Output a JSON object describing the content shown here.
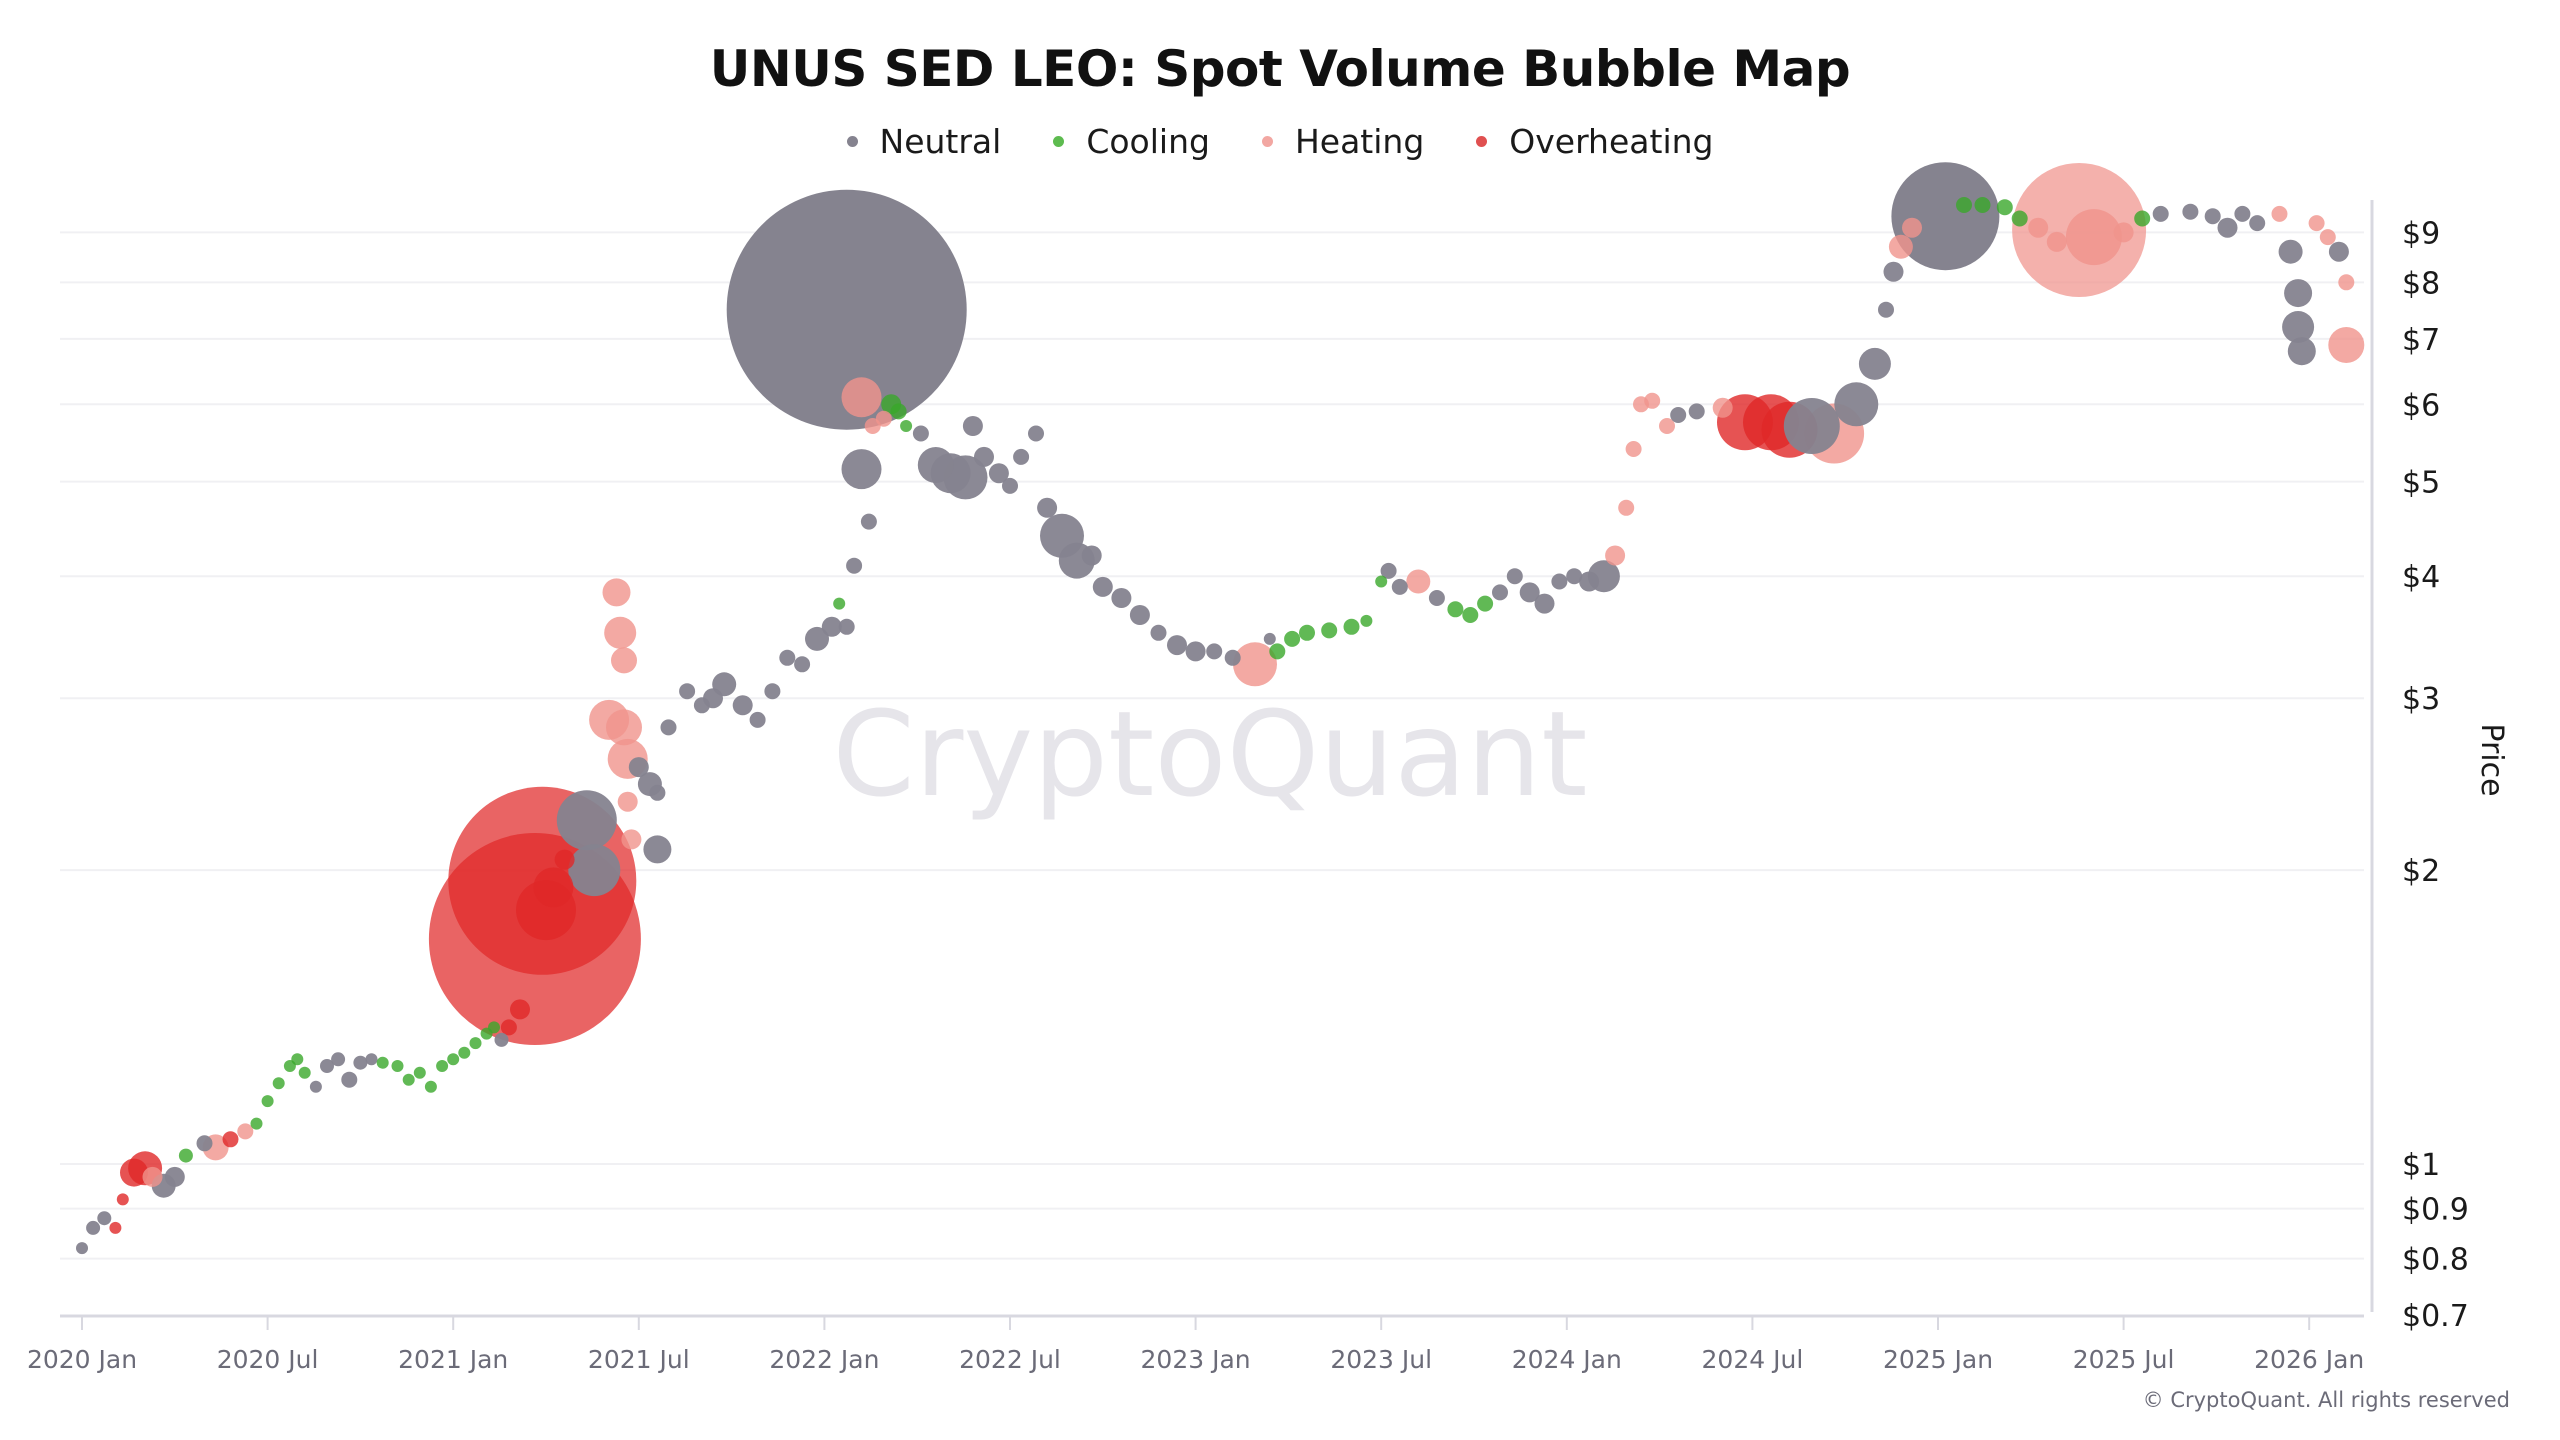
{
  "title": "UNUS SED LEO: Spot Volume Bubble Map",
  "legend": [
    {
      "label": "Neutral",
      "color": "#85838f"
    },
    {
      "label": "Cooling",
      "color": "#5dbb4f"
    },
    {
      "label": "Heating",
      "color": "#f2a7a2"
    },
    {
      "label": "Overheating",
      "color": "#e05050"
    }
  ],
  "watermark": "CryptoQuant",
  "copyright": "© CryptoQuant. All rights reserved",
  "colors": {
    "Neutral": "#85838f",
    "Cooling": "#3aa82a",
    "Heating": "#f0938c",
    "Overheating": "#e02828",
    "grid": "#f0f0f3",
    "axis": "#d8d8e0"
  },
  "chart_data": {
    "type": "scatter",
    "subtype": "bubble",
    "title": "UNUS SED LEO: Spot Volume Bubble Map",
    "xlabel": "",
    "ylabel": "Price",
    "yscale": "log",
    "ylim": [
      0.7,
      10
    ],
    "xlim": [
      "2019-12",
      "2026-03"
    ],
    "grid": true,
    "legend_position": "top",
    "x_ticks": [
      "2020 Jan",
      "2020 Jul",
      "2021 Jan",
      "2021 Jul",
      "2022 Jan",
      "2022 Jul",
      "2023 Jan",
      "2023 Jul",
      "2024 Jan",
      "2024 Jul",
      "2025 Jan",
      "2025 Jul",
      "2026 Jan"
    ],
    "y_ticks": [
      {
        "value": 9,
        "label": "$9"
      },
      {
        "value": 8,
        "label": "$8"
      },
      {
        "value": 7,
        "label": "$7"
      },
      {
        "value": 6,
        "label": "$6"
      },
      {
        "value": 5,
        "label": "$5"
      },
      {
        "value": 4,
        "label": "$4"
      },
      {
        "value": 3,
        "label": "$3"
      },
      {
        "value": 2,
        "label": "$2"
      },
      {
        "value": 1,
        "label": "$1"
      },
      {
        "value": 0.9,
        "label": "$0.9"
      },
      {
        "value": 0.8,
        "label": "$0.8"
      },
      {
        "value": 0.7,
        "label": "$0.7"
      }
    ],
    "series_names": [
      "Neutral",
      "Cooling",
      "Heating",
      "Overheating"
    ],
    "points_format": [
      "year_fraction",
      "price_usd",
      "state",
      "bubble_radius_px"
    ],
    "points": [
      [
        2020.0,
        0.82,
        "Neutral",
        6
      ],
      [
        2020.03,
        0.86,
        "Neutral",
        7
      ],
      [
        2020.06,
        0.88,
        "Neutral",
        7
      ],
      [
        2020.09,
        0.86,
        "Overheating",
        6
      ],
      [
        2020.11,
        0.92,
        "Overheating",
        6
      ],
      [
        2020.14,
        0.98,
        "Overheating",
        14
      ],
      [
        2020.17,
        0.99,
        "Overheating",
        17
      ],
      [
        2020.19,
        0.97,
        "Heating",
        10
      ],
      [
        2020.22,
        0.95,
        "Neutral",
        12
      ],
      [
        2020.25,
        0.97,
        "Neutral",
        10
      ],
      [
        2020.28,
        1.02,
        "Cooling",
        7
      ],
      [
        2020.33,
        1.05,
        "Neutral",
        8
      ],
      [
        2020.36,
        1.04,
        "Heating",
        13
      ],
      [
        2020.4,
        1.06,
        "Overheating",
        8
      ],
      [
        2020.44,
        1.08,
        "Heating",
        8
      ],
      [
        2020.47,
        1.1,
        "Cooling",
        6
      ],
      [
        2020.5,
        1.16,
        "Cooling",
        6
      ],
      [
        2020.53,
        1.21,
        "Cooling",
        6
      ],
      [
        2020.56,
        1.26,
        "Cooling",
        6
      ],
      [
        2020.58,
        1.28,
        "Cooling",
        6
      ],
      [
        2020.6,
        1.24,
        "Cooling",
        6
      ],
      [
        2020.63,
        1.2,
        "Neutral",
        6
      ],
      [
        2020.66,
        1.26,
        "Neutral",
        7
      ],
      [
        2020.69,
        1.28,
        "Neutral",
        7
      ],
      [
        2020.72,
        1.22,
        "Neutral",
        8
      ],
      [
        2020.75,
        1.27,
        "Neutral",
        7
      ],
      [
        2020.78,
        1.28,
        "Neutral",
        6
      ],
      [
        2020.81,
        1.27,
        "Cooling",
        6
      ],
      [
        2020.85,
        1.26,
        "Cooling",
        6
      ],
      [
        2020.88,
        1.22,
        "Cooling",
        6
      ],
      [
        2020.91,
        1.24,
        "Cooling",
        6
      ],
      [
        2020.94,
        1.2,
        "Cooling",
        6
      ],
      [
        2020.97,
        1.26,
        "Cooling",
        6
      ],
      [
        2021.0,
        1.28,
        "Cooling",
        6
      ],
      [
        2021.03,
        1.3,
        "Cooling",
        6
      ],
      [
        2021.06,
        1.33,
        "Cooling",
        6
      ],
      [
        2021.09,
        1.36,
        "Cooling",
        6
      ],
      [
        2021.11,
        1.38,
        "Cooling",
        6
      ],
      [
        2021.13,
        1.34,
        "Neutral",
        7
      ],
      [
        2021.15,
        1.38,
        "Overheating",
        8
      ],
      [
        2021.18,
        1.44,
        "Overheating",
        10
      ],
      [
        2021.22,
        1.7,
        "Overheating",
        106
      ],
      [
        2021.24,
        1.95,
        "Overheating",
        94
      ],
      [
        2021.25,
        1.82,
        "Overheating",
        30
      ],
      [
        2021.27,
        1.92,
        "Overheating",
        20
      ],
      [
        2021.3,
        2.05,
        "Overheating",
        10
      ],
      [
        2021.36,
        2.25,
        "Neutral",
        30
      ],
      [
        2021.38,
        2.0,
        "Neutral",
        26
      ],
      [
        2021.42,
        2.85,
        "Heating",
        20
      ],
      [
        2021.44,
        3.85,
        "Heating",
        14
      ],
      [
        2021.45,
        3.5,
        "Heating",
        16
      ],
      [
        2021.46,
        3.28,
        "Heating",
        13
      ],
      [
        2021.46,
        2.8,
        "Heating",
        18
      ],
      [
        2021.47,
        2.6,
        "Heating",
        20
      ],
      [
        2021.47,
        2.35,
        "Heating",
        10
      ],
      [
        2021.48,
        2.15,
        "Heating",
        10
      ],
      [
        2021.5,
        2.55,
        "Neutral",
        10
      ],
      [
        2021.53,
        2.45,
        "Neutral",
        12
      ],
      [
        2021.55,
        2.1,
        "Neutral",
        14
      ],
      [
        2021.55,
        2.4,
        "Neutral",
        8
      ],
      [
        2021.58,
        2.8,
        "Neutral",
        8
      ],
      [
        2021.63,
        3.05,
        "Neutral",
        8
      ],
      [
        2021.67,
        2.95,
        "Neutral",
        8
      ],
      [
        2021.7,
        3.0,
        "Neutral",
        10
      ],
      [
        2021.73,
        3.1,
        "Neutral",
        12
      ],
      [
        2021.78,
        2.95,
        "Neutral",
        10
      ],
      [
        2021.82,
        2.85,
        "Neutral",
        8
      ],
      [
        2021.86,
        3.05,
        "Neutral",
        8
      ],
      [
        2021.9,
        3.3,
        "Neutral",
        8
      ],
      [
        2021.94,
        3.25,
        "Neutral",
        8
      ],
      [
        2021.98,
        3.45,
        "Neutral",
        12
      ],
      [
        2022.02,
        3.55,
        "Neutral",
        10
      ],
      [
        2022.04,
        3.75,
        "Cooling",
        6
      ],
      [
        2022.06,
        3.55,
        "Neutral",
        8
      ],
      [
        2022.08,
        4.1,
        "Neutral",
        8
      ],
      [
        2022.1,
        5.15,
        "Neutral",
        20
      ],
      [
        2022.12,
        4.55,
        "Neutral",
        8
      ],
      [
        2022.06,
        7.5,
        "Neutral",
        120
      ],
      [
        2022.1,
        6.1,
        "Heating",
        20
      ],
      [
        2022.13,
        5.7,
        "Heating",
        8
      ],
      [
        2022.16,
        5.8,
        "Heating",
        8
      ],
      [
        2022.18,
        6.0,
        "Cooling",
        10
      ],
      [
        2022.2,
        5.9,
        "Cooling",
        8
      ],
      [
        2022.22,
        5.7,
        "Cooling",
        6
      ],
      [
        2022.26,
        5.6,
        "Neutral",
        8
      ],
      [
        2022.3,
        5.2,
        "Neutral",
        18
      ],
      [
        2022.34,
        5.1,
        "Neutral",
        20
      ],
      [
        2022.38,
        5.05,
        "Neutral",
        22
      ],
      [
        2022.4,
        5.7,
        "Neutral",
        10
      ],
      [
        2022.43,
        5.3,
        "Neutral",
        10
      ],
      [
        2022.47,
        5.1,
        "Neutral",
        10
      ],
      [
        2022.5,
        4.95,
        "Neutral",
        8
      ],
      [
        2022.53,
        5.3,
        "Neutral",
        8
      ],
      [
        2022.57,
        5.6,
        "Neutral",
        8
      ],
      [
        2022.6,
        4.7,
        "Neutral",
        10
      ],
      [
        2022.64,
        4.4,
        "Neutral",
        22
      ],
      [
        2022.68,
        4.15,
        "Neutral",
        18
      ],
      [
        2022.72,
        4.2,
        "Neutral",
        10
      ],
      [
        2022.75,
        3.9,
        "Neutral",
        10
      ],
      [
        2022.8,
        3.8,
        "Neutral",
        10
      ],
      [
        2022.85,
        3.65,
        "Neutral",
        10
      ],
      [
        2022.9,
        3.5,
        "Neutral",
        8
      ],
      [
        2022.95,
        3.4,
        "Neutral",
        10
      ],
      [
        2023.0,
        3.35,
        "Neutral",
        10
      ],
      [
        2023.05,
        3.35,
        "Neutral",
        8
      ],
      [
        2023.1,
        3.3,
        "Neutral",
        8
      ],
      [
        2023.16,
        3.25,
        "Heating",
        22
      ],
      [
        2023.2,
        3.45,
        "Neutral",
        6
      ],
      [
        2023.22,
        3.35,
        "Cooling",
        8
      ],
      [
        2023.26,
        3.45,
        "Cooling",
        8
      ],
      [
        2023.3,
        3.5,
        "Cooling",
        8
      ],
      [
        2023.36,
        3.52,
        "Cooling",
        8
      ],
      [
        2023.42,
        3.55,
        "Cooling",
        8
      ],
      [
        2023.46,
        3.6,
        "Cooling",
        6
      ],
      [
        2023.5,
        3.95,
        "Cooling",
        6
      ],
      [
        2023.52,
        4.05,
        "Neutral",
        8
      ],
      [
        2023.55,
        3.9,
        "Neutral",
        8
      ],
      [
        2023.6,
        3.95,
        "Heating",
        12
      ],
      [
        2023.65,
        3.8,
        "Neutral",
        8
      ],
      [
        2023.7,
        3.7,
        "Cooling",
        8
      ],
      [
        2023.74,
        3.65,
        "Cooling",
        8
      ],
      [
        2023.78,
        3.75,
        "Cooling",
        8
      ],
      [
        2023.82,
        3.85,
        "Neutral",
        8
      ],
      [
        2023.86,
        4.0,
        "Neutral",
        8
      ],
      [
        2023.9,
        3.85,
        "Neutral",
        10
      ],
      [
        2023.94,
        3.75,
        "Neutral",
        10
      ],
      [
        2023.98,
        3.95,
        "Neutral",
        8
      ],
      [
        2024.02,
        4.0,
        "Neutral",
        8
      ],
      [
        2024.06,
        3.95,
        "Neutral",
        10
      ],
      [
        2024.1,
        4.0,
        "Neutral",
        16
      ],
      [
        2024.13,
        4.2,
        "Heating",
        10
      ],
      [
        2024.16,
        4.7,
        "Heating",
        8
      ],
      [
        2024.18,
        5.4,
        "Heating",
        8
      ],
      [
        2024.2,
        6.0,
        "Heating",
        8
      ],
      [
        2024.23,
        6.05,
        "Heating",
        8
      ],
      [
        2024.27,
        5.7,
        "Heating",
        8
      ],
      [
        2024.3,
        5.85,
        "Neutral",
        8
      ],
      [
        2024.35,
        5.9,
        "Neutral",
        8
      ],
      [
        2024.42,
        5.95,
        "Heating",
        10
      ],
      [
        2024.48,
        5.75,
        "Overheating",
        28
      ],
      [
        2024.55,
        5.75,
        "Overheating",
        28
      ],
      [
        2024.6,
        5.65,
        "Overheating",
        28
      ],
      [
        2024.66,
        5.7,
        "Neutral",
        28
      ],
      [
        2024.72,
        5.6,
        "Heating",
        30
      ],
      [
        2024.78,
        6.0,
        "Neutral",
        22
      ],
      [
        2024.83,
        6.6,
        "Neutral",
        16
      ],
      [
        2024.86,
        7.5,
        "Neutral",
        8
      ],
      [
        2024.88,
        8.2,
        "Neutral",
        10
      ],
      [
        2024.9,
        8.7,
        "Heating",
        12
      ],
      [
        2024.93,
        9.1,
        "Heating",
        10
      ],
      [
        2025.02,
        9.35,
        "Neutral",
        54
      ],
      [
        2025.07,
        9.6,
        "Cooling",
        8
      ],
      [
        2025.12,
        9.6,
        "Cooling",
        8
      ],
      [
        2025.18,
        9.55,
        "Cooling",
        8
      ],
      [
        2025.22,
        9.3,
        "Cooling",
        8
      ],
      [
        2025.27,
        9.1,
        "Heating",
        10
      ],
      [
        2025.32,
        8.8,
        "Heating",
        10
      ],
      [
        2025.38,
        9.05,
        "Heating",
        67
      ],
      [
        2025.42,
        8.9,
        "Heating",
        28
      ],
      [
        2025.5,
        9.0,
        "Heating",
        10
      ],
      [
        2025.55,
        9.3,
        "Cooling",
        8
      ],
      [
        2025.6,
        9.4,
        "Neutral",
        8
      ],
      [
        2025.68,
        9.45,
        "Neutral",
        8
      ],
      [
        2025.74,
        9.35,
        "Neutral",
        8
      ],
      [
        2025.78,
        9.1,
        "Neutral",
        10
      ],
      [
        2025.82,
        9.4,
        "Neutral",
        8
      ],
      [
        2025.86,
        9.2,
        "Neutral",
        8
      ],
      [
        2025.92,
        9.4,
        "Heating",
        8
      ],
      [
        2025.95,
        8.6,
        "Neutral",
        12
      ],
      [
        2025.97,
        7.8,
        "Neutral",
        14
      ],
      [
        2025.97,
        7.2,
        "Neutral",
        16
      ],
      [
        2025.98,
        6.8,
        "Neutral",
        14
      ],
      [
        2026.02,
        9.2,
        "Heating",
        8
      ],
      [
        2026.05,
        8.9,
        "Heating",
        8
      ],
      [
        2026.08,
        8.6,
        "Neutral",
        10
      ],
      [
        2026.1,
        8.0,
        "Heating",
        8
      ],
      [
        2026.1,
        6.9,
        "Heating",
        18
      ]
    ]
  }
}
